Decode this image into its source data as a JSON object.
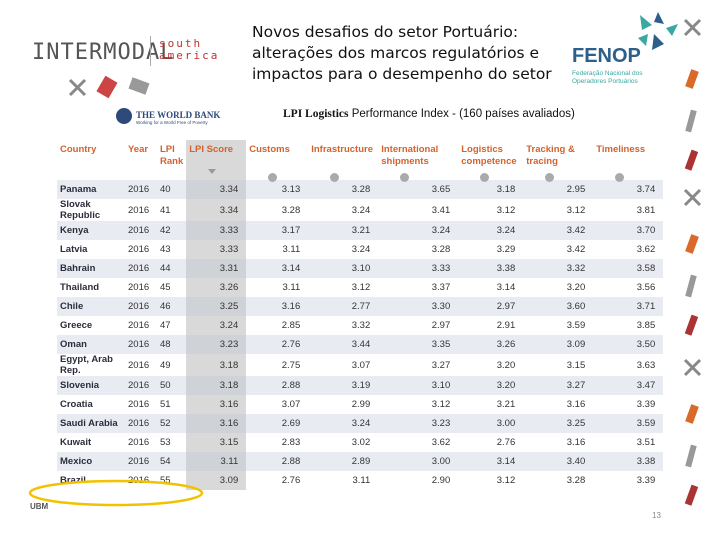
{
  "header": {
    "title_lines": [
      "Novos desafios do setor Portuário:",
      "alterações dos marcos regulatórios e",
      "impactos  para o desempenho do setor"
    ],
    "intermodal": "INTERMODAL",
    "south_america": [
      "south",
      "america"
    ],
    "fenop": "FENOP",
    "fenop_sub": [
      "Federação Nacional dos",
      "Operadores Portuários"
    ],
    "world_bank": "THE WORLD BANK",
    "world_bank_sub": "Working for a World Free of Poverty"
  },
  "subtitle": {
    "bold": "LPI  Logistics",
    "rest": "Performance Index - (160 países avaliados)"
  },
  "table": {
    "columns": [
      "Country",
      "Year",
      "LPI\nRank",
      "LPI Score",
      "Customs",
      "Infrastructure",
      "International\nshipments",
      "Logistics\ncompetence",
      "Tracking &\ntracing",
      "Timeliness"
    ],
    "rows": [
      [
        "Panama",
        "2016",
        "40",
        "3.34",
        "3.13",
        "3.28",
        "3.65",
        "3.18",
        "2.95",
        "3.74"
      ],
      [
        "Slovak\nRepublic",
        "2016",
        "41",
        "3.34",
        "3.28",
        "3.24",
        "3.41",
        "3.12",
        "3.12",
        "3.81"
      ],
      [
        "Kenya",
        "2016",
        "42",
        "3.33",
        "3.17",
        "3.21",
        "3.24",
        "3.24",
        "3.42",
        "3.70"
      ],
      [
        "Latvia",
        "2016",
        "43",
        "3.33",
        "3.11",
        "3.24",
        "3.28",
        "3.29",
        "3.42",
        "3.62"
      ],
      [
        "Bahrain",
        "2016",
        "44",
        "3.31",
        "3.14",
        "3.10",
        "3.33",
        "3.38",
        "3.32",
        "3.58"
      ],
      [
        "Thailand",
        "2016",
        "45",
        "3.26",
        "3.11",
        "3.12",
        "3.37",
        "3.14",
        "3.20",
        "3.56"
      ],
      [
        "Chile",
        "2016",
        "46",
        "3.25",
        "3.16",
        "2.77",
        "3.30",
        "2.97",
        "3.60",
        "3.71"
      ],
      [
        "Greece",
        "2016",
        "47",
        "3.24",
        "2.85",
        "3.32",
        "2.97",
        "2.91",
        "3.59",
        "3.85"
      ],
      [
        "Oman",
        "2016",
        "48",
        "3.23",
        "2.76",
        "3.44",
        "3.35",
        "3.26",
        "3.09",
        "3.50"
      ],
      [
        "Egypt, Arab\nRep.",
        "2016",
        "49",
        "3.18",
        "2.75",
        "3.07",
        "3.27",
        "3.20",
        "3.15",
        "3.63"
      ],
      [
        "Slovenia",
        "2016",
        "50",
        "3.18",
        "2.88",
        "3.19",
        "3.10",
        "3.20",
        "3.27",
        "3.47"
      ],
      [
        "Croatia",
        "2016",
        "51",
        "3.16",
        "3.07",
        "2.99",
        "3.12",
        "3.21",
        "3.16",
        "3.39"
      ],
      [
        "Saudi Arabia",
        "2016",
        "52",
        "3.16",
        "2.69",
        "3.24",
        "3.23",
        "3.00",
        "3.25",
        "3.59"
      ],
      [
        "Kuwait",
        "2016",
        "53",
        "3.15",
        "2.83",
        "3.02",
        "3.62",
        "2.76",
        "3.16",
        "3.51"
      ],
      [
        "Mexico",
        "2016",
        "54",
        "3.11",
        "2.88",
        "2.89",
        "3.00",
        "3.14",
        "3.40",
        "3.38"
      ],
      [
        "Brazil",
        "2016",
        "55",
        "3.09",
        "2.76",
        "3.11",
        "2.90",
        "3.12",
        "3.28",
        "3.39"
      ]
    ]
  },
  "footer": {
    "ubm": "UBM",
    "page": "13"
  }
}
